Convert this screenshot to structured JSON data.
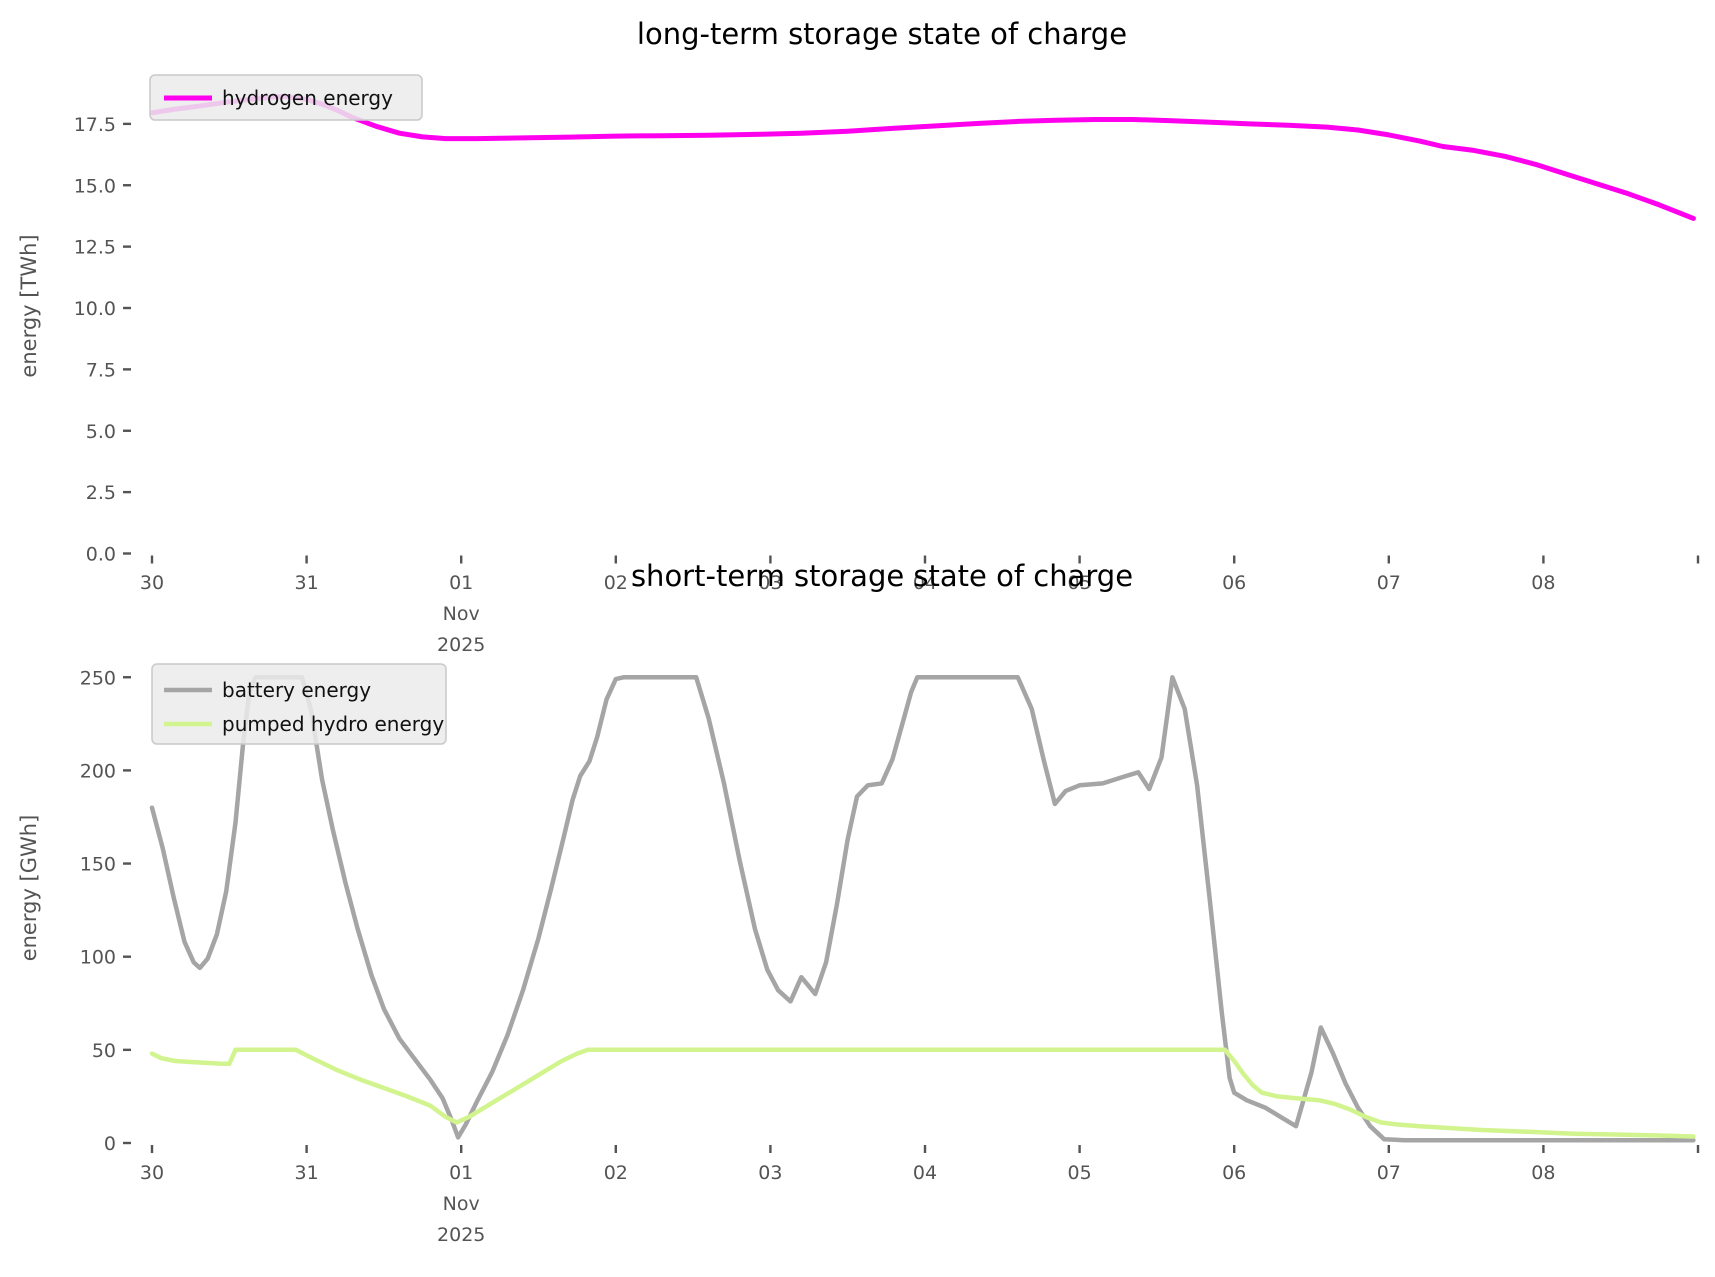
{
  "figure": {
    "background": "#ffffff",
    "text_color": "#545454",
    "x_axis_dates": [
      "30",
      "31",
      "01 Nov 2025",
      "02",
      "03",
      "04",
      "05",
      "06",
      "07",
      "08"
    ]
  },
  "chart_data": [
    {
      "id": "long_term",
      "type": "line",
      "title": "long-term storage state of charge",
      "xlabel": "",
      "ylabel": "energy [TWh]",
      "x_unit": "days since 2025-10-30",
      "xlim": [
        -0.12,
        10.0
      ],
      "ylim": [
        0,
        20.3
      ],
      "grid": false,
      "legend_position": "upper-left",
      "xticks": [
        {
          "t": 0,
          "lines": [
            "30"
          ]
        },
        {
          "t": 1,
          "lines": [
            "31"
          ]
        },
        {
          "t": 2,
          "lines": [
            "01",
            "Nov",
            "2025"
          ]
        },
        {
          "t": 3,
          "lines": [
            "02"
          ]
        },
        {
          "t": 4,
          "lines": [
            "03"
          ]
        },
        {
          "t": 5,
          "lines": [
            "04"
          ]
        },
        {
          "t": 6,
          "lines": [
            "05"
          ]
        },
        {
          "t": 7,
          "lines": [
            "06"
          ]
        },
        {
          "t": 8,
          "lines": [
            "07"
          ]
        },
        {
          "t": 9,
          "lines": [
            "08"
          ]
        },
        {
          "t": 10,
          "lines": []
        }
      ],
      "yticks": [
        {
          "v": 0,
          "label": "0.0"
        },
        {
          "v": 2.5,
          "label": "2.5"
        },
        {
          "v": 5,
          "label": "5.0"
        },
        {
          "v": 7.5,
          "label": "7.5"
        },
        {
          "v": 10,
          "label": "10.0"
        },
        {
          "v": 12.5,
          "label": "12.5"
        },
        {
          "v": 15,
          "label": "15.0"
        },
        {
          "v": 17.5,
          "label": "17.5"
        }
      ],
      "series": [
        {
          "name": "hydrogen energy",
          "color": "#ff00ee",
          "width": 5,
          "points": [
            [
              0,
              17.95
            ],
            [
              0.15,
              18.1
            ],
            [
              0.3,
              18.22
            ],
            [
              0.5,
              18.4
            ],
            [
              0.7,
              18.55
            ],
            [
              0.85,
              18.62
            ],
            [
              1.0,
              18.5
            ],
            [
              1.1,
              18.3
            ],
            [
              1.2,
              18.05
            ],
            [
              1.3,
              17.75
            ],
            [
              1.45,
              17.4
            ],
            [
              1.6,
              17.12
            ],
            [
              1.75,
              16.97
            ],
            [
              1.9,
              16.9
            ],
            [
              2.1,
              16.9
            ],
            [
              2.4,
              16.93
            ],
            [
              2.7,
              16.96
            ],
            [
              3.0,
              17.0
            ],
            [
              3.3,
              17.02
            ],
            [
              3.6,
              17.04
            ],
            [
              3.9,
              17.07
            ],
            [
              4.2,
              17.12
            ],
            [
              4.5,
              17.2
            ],
            [
              4.8,
              17.32
            ],
            [
              5.1,
              17.43
            ],
            [
              5.35,
              17.52
            ],
            [
              5.6,
              17.6
            ],
            [
              5.85,
              17.65
            ],
            [
              6.1,
              17.68
            ],
            [
              6.35,
              17.68
            ],
            [
              6.6,
              17.63
            ],
            [
              6.85,
              17.57
            ],
            [
              7.1,
              17.5
            ],
            [
              7.35,
              17.44
            ],
            [
              7.6,
              17.37
            ],
            [
              7.8,
              17.25
            ],
            [
              8.0,
              17.05
            ],
            [
              8.2,
              16.8
            ],
            [
              8.35,
              16.58
            ],
            [
              8.55,
              16.42
            ],
            [
              8.75,
              16.18
            ],
            [
              8.95,
              15.85
            ],
            [
              9.15,
              15.45
            ],
            [
              9.35,
              15.05
            ],
            [
              9.55,
              14.65
            ],
            [
              9.75,
              14.2
            ],
            [
              9.97,
              13.65
            ]
          ]
        }
      ]
    },
    {
      "id": "short_term",
      "type": "line",
      "title": "short-term storage state of charge",
      "xlabel": "",
      "ylabel": "energy [GWh]",
      "x_unit": "days since 2025-10-30",
      "xlim": [
        -0.12,
        10.0
      ],
      "ylim": [
        0,
        270
      ],
      "grid": false,
      "legend_position": "upper-left",
      "xticks": [
        {
          "t": 0,
          "lines": [
            "30"
          ]
        },
        {
          "t": 1,
          "lines": [
            "31"
          ]
        },
        {
          "t": 2,
          "lines": [
            "01",
            "Nov",
            "2025"
          ]
        },
        {
          "t": 3,
          "lines": [
            "02"
          ]
        },
        {
          "t": 4,
          "lines": [
            "03"
          ]
        },
        {
          "t": 5,
          "lines": [
            "04"
          ]
        },
        {
          "t": 6,
          "lines": [
            "05"
          ]
        },
        {
          "t": 7,
          "lines": [
            "06"
          ]
        },
        {
          "t": 8,
          "lines": [
            "07"
          ]
        },
        {
          "t": 9,
          "lines": [
            "08"
          ]
        },
        {
          "t": 10,
          "lines": []
        }
      ],
      "yticks": [
        {
          "v": 0,
          "label": "0"
        },
        {
          "v": 50,
          "label": "50"
        },
        {
          "v": 100,
          "label": "100"
        },
        {
          "v": 150,
          "label": "150"
        },
        {
          "v": 200,
          "label": "200"
        },
        {
          "v": 250,
          "label": "250"
        }
      ],
      "series": [
        {
          "name": "battery energy",
          "color": "#a5a5a5",
          "width": 4.5,
          "points": [
            [
              0,
              180
            ],
            [
              0.07,
              158
            ],
            [
              0.14,
              132
            ],
            [
              0.21,
              108
            ],
            [
              0.27,
              97
            ],
            [
              0.31,
              94
            ],
            [
              0.36,
              99
            ],
            [
              0.42,
              112
            ],
            [
              0.48,
              135
            ],
            [
              0.54,
              172
            ],
            [
              0.59,
              215
            ],
            [
              0.63,
              242
            ],
            [
              0.67,
              250
            ],
            [
              0.97,
              250
            ],
            [
              1.03,
              232
            ],
            [
              1.1,
              195
            ],
            [
              1.17,
              168
            ],
            [
              1.25,
              140
            ],
            [
              1.33,
              115
            ],
            [
              1.42,
              90
            ],
            [
              1.5,
              72
            ],
            [
              1.6,
              56
            ],
            [
              1.7,
              45
            ],
            [
              1.8,
              34
            ],
            [
              1.88,
              24
            ],
            [
              1.94,
              12
            ],
            [
              1.98,
              3
            ],
            [
              2.03,
              10
            ],
            [
              2.1,
              22
            ],
            [
              2.2,
              38
            ],
            [
              2.3,
              58
            ],
            [
              2.4,
              82
            ],
            [
              2.5,
              110
            ],
            [
              2.58,
              136
            ],
            [
              2.66,
              163
            ],
            [
              2.72,
              184
            ],
            [
              2.77,
              197
            ],
            [
              2.83,
              205
            ],
            [
              2.88,
              218
            ],
            [
              2.94,
              238
            ],
            [
              3.0,
              249
            ],
            [
              3.05,
              250
            ],
            [
              3.52,
              250
            ],
            [
              3.6,
              228
            ],
            [
              3.7,
              193
            ],
            [
              3.8,
              152
            ],
            [
              3.9,
              115
            ],
            [
              3.98,
              93
            ],
            [
              4.05,
              82
            ],
            [
              4.13,
              76
            ],
            [
              4.2,
              89
            ],
            [
              4.24,
              85
            ],
            [
              4.29,
              80
            ],
            [
              4.36,
              97
            ],
            [
              4.43,
              128
            ],
            [
              4.5,
              163
            ],
            [
              4.56,
              186
            ],
            [
              4.63,
              192
            ],
            [
              4.72,
              193
            ],
            [
              4.79,
              206
            ],
            [
              4.86,
              227
            ],
            [
              4.91,
              242
            ],
            [
              4.95,
              250
            ],
            [
              5.6,
              250
            ],
            [
              5.69,
              233
            ],
            [
              5.77,
              205
            ],
            [
              5.84,
              182
            ],
            [
              5.91,
              189
            ],
            [
              6.0,
              192
            ],
            [
              6.15,
              193
            ],
            [
              6.3,
              197
            ],
            [
              6.38,
              199
            ],
            [
              6.45,
              190
            ],
            [
              6.53,
              207
            ],
            [
              6.6,
              250
            ],
            [
              6.68,
              233
            ],
            [
              6.76,
              192
            ],
            [
              6.84,
              132
            ],
            [
              6.92,
              70
            ],
            [
              6.97,
              35
            ],
            [
              7.0,
              27
            ],
            [
              7.08,
              23
            ],
            [
              7.2,
              19
            ],
            [
              7.3,
              14
            ],
            [
              7.4,
              9
            ],
            [
              7.5,
              38
            ],
            [
              7.56,
              62
            ],
            [
              7.64,
              48
            ],
            [
              7.72,
              32
            ],
            [
              7.8,
              19
            ],
            [
              7.88,
              9
            ],
            [
              7.97,
              2
            ],
            [
              8.1,
              1.5
            ],
            [
              8.6,
              1.5
            ],
            [
              9.2,
              1.5
            ],
            [
              9.97,
              1.5
            ]
          ]
        },
        {
          "name": "pumped hydro energy",
          "color": "#d2f48e",
          "width": 4.5,
          "points": [
            [
              0,
              48
            ],
            [
              0.06,
              45.5
            ],
            [
              0.15,
              44
            ],
            [
              0.25,
              43.5
            ],
            [
              0.35,
              43
            ],
            [
              0.45,
              42.5
            ],
            [
              0.5,
              42.5
            ],
            [
              0.54,
              50
            ],
            [
              0.93,
              50
            ],
            [
              1.0,
              47
            ],
            [
              1.1,
              43
            ],
            [
              1.2,
              39
            ],
            [
              1.35,
              34
            ],
            [
              1.5,
              29.5
            ],
            [
              1.65,
              25
            ],
            [
              1.8,
              20
            ],
            [
              1.9,
              14
            ],
            [
              1.97,
              11
            ],
            [
              2.05,
              14
            ],
            [
              2.15,
              19
            ],
            [
              2.25,
              24
            ],
            [
              2.35,
              29
            ],
            [
              2.45,
              34
            ],
            [
              2.55,
              39
            ],
            [
              2.65,
              44
            ],
            [
              2.75,
              48
            ],
            [
              2.82,
              50
            ],
            [
              6.94,
              50
            ],
            [
              7.0,
              44
            ],
            [
              7.06,
              37
            ],
            [
              7.12,
              31
            ],
            [
              7.18,
              27
            ],
            [
              7.28,
              25
            ],
            [
              7.4,
              24
            ],
            [
              7.55,
              23
            ],
            [
              7.65,
              21
            ],
            [
              7.75,
              18
            ],
            [
              7.85,
              14
            ],
            [
              7.95,
              11
            ],
            [
              8.05,
              10
            ],
            [
              8.2,
              9
            ],
            [
              8.4,
              8
            ],
            [
              8.6,
              7
            ],
            [
              8.9,
              6
            ],
            [
              9.2,
              5
            ],
            [
              9.5,
              4.5
            ],
            [
              9.75,
              4
            ],
            [
              9.97,
              3.5
            ]
          ]
        }
      ]
    }
  ]
}
